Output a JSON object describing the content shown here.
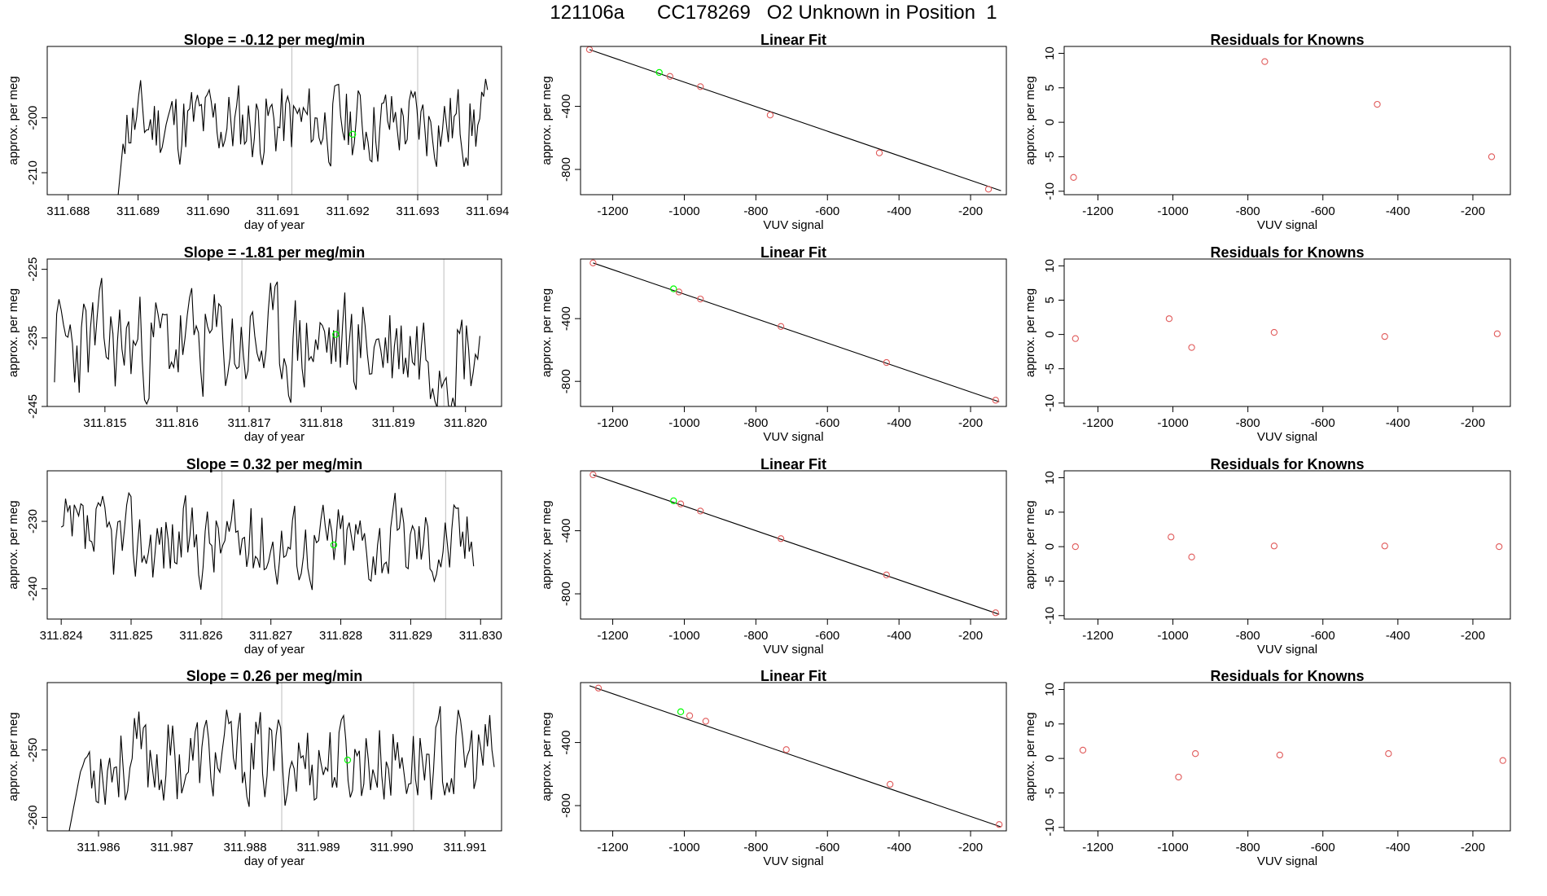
{
  "figure": {
    "title": "121106a      CC178269   O2 Unknown in Position  1"
  },
  "colors": {
    "line": "#000000",
    "vline": "#bebebe",
    "highlight": "#00ff00",
    "point": "#e05a5a",
    "axis": "#000000"
  },
  "chart_data": [
    {
      "id": "ts-1",
      "type": "line",
      "title": "Slope =  -0.12  per meg/min",
      "xlabel": "day of year",
      "ylabel": "approx. per meg",
      "xlim": [
        311.6877,
        311.6942
      ],
      "ylim": [
        -214,
        -187
      ],
      "xticks": [
        311.688,
        311.689,
        311.69,
        311.691,
        311.692,
        311.693,
        311.694
      ],
      "xticklabels": [
        "311.688",
        "311.689",
        "311.690",
        "311.691",
        "311.692",
        "311.693",
        "311.694"
      ],
      "yticks": [
        -210,
        -200
      ],
      "yticklabels": [
        "-210",
        "-200"
      ],
      "x_start": 311.6887,
      "x_end": 311.694,
      "base": -201,
      "amp": 4.2,
      "seed": 11,
      "warm_len": 4,
      "warm_from": -216,
      "vlines": [
        311.6912,
        311.693
      ],
      "highlight": {
        "x": 311.69207,
        "y": -203.0
      }
    },
    {
      "id": "fit-1",
      "type": "scatter",
      "title": "Linear Fit",
      "xlabel": "VUV signal",
      "ylabel": "approx. per meg",
      "xlim": [
        -1290,
        -100
      ],
      "ylim": [
        -960,
        -20
      ],
      "xticks": [
        -1200,
        -1000,
        -800,
        -600,
        -400,
        -200
      ],
      "xticklabels": [
        "-1200",
        "-1000",
        "-800",
        "-600",
        "-400",
        "-200"
      ],
      "yticks": [
        -400,
        -800
      ],
      "yticklabels": [
        "-400",
        "-800"
      ],
      "line": {
        "x": [
          -1265,
          -115
        ],
        "y": [
          -40,
          -935
        ]
      },
      "points_x": [
        -1265,
        -1040,
        -955,
        -760,
        -455,
        -150
      ],
      "points_y": [
        -40,
        -210,
        -275,
        -455,
        -695,
        -925
      ],
      "highlight": {
        "x": -1070,
        "y": -185
      }
    },
    {
      "id": "res-1",
      "type": "scatter",
      "title": "Residuals for Knowns",
      "xlabel": "VUV signal",
      "ylabel": "approx. per meg",
      "xlim": [
        -1290,
        -100
      ],
      "ylim": [
        -10.5,
        11
      ],
      "xticks": [
        -1200,
        -1000,
        -800,
        -600,
        -400,
        -200
      ],
      "xticklabels": [
        "-1200",
        "-1000",
        "-800",
        "-600",
        "-400",
        "-200"
      ],
      "yticks": [
        -10,
        -5,
        0,
        5,
        10
      ],
      "yticklabels": [
        "-10",
        "-5",
        "0",
        "5",
        "10"
      ],
      "points_x": [
        -1265,
        -755,
        -455,
        -150
      ],
      "points_y": [
        -8.0,
        8.8,
        2.6,
        -5.0
      ]
    },
    {
      "id": "ts-2",
      "type": "line",
      "title": "Slope =  -1.81  per meg/min",
      "xlabel": "day of year",
      "ylabel": "approx. per meg",
      "xlim": [
        311.8142,
        311.8205
      ],
      "ylim": [
        -245,
        -223.5
      ],
      "xticks": [
        311.815,
        311.816,
        311.817,
        311.818,
        311.819,
        311.82
      ],
      "xticklabels": [
        "311.815",
        "311.816",
        "311.817",
        "311.818",
        "311.819",
        "311.820"
      ],
      "yticks": [
        -245,
        -235,
        -225
      ],
      "yticklabels": [
        "-245",
        "-235",
        "-225"
      ],
      "x_start": 311.8143,
      "x_end": 311.8202,
      "base": -236,
      "amp": 4.6,
      "seed": 23,
      "warm_len": 0,
      "warm_from": -236,
      "vlines": [
        311.8169,
        311.8197
      ],
      "highlight": {
        "x": 311.8182,
        "y": -234.5
      }
    },
    {
      "id": "fit-2",
      "type": "scatter",
      "title": "Linear Fit",
      "xlabel": "VUV signal",
      "ylabel": "approx. per meg",
      "xlim": [
        -1290,
        -100
      ],
      "ylim": [
        -960,
        -20
      ],
      "xticks": [
        -1200,
        -1000,
        -800,
        -600,
        -400,
        -200
      ],
      "xticklabels": [
        "-1200",
        "-1000",
        "-800",
        "-600",
        "-400",
        "-200"
      ],
      "yticks": [
        -400,
        -800
      ],
      "yticklabels": [
        "-400",
        "-800"
      ],
      "line": {
        "x": [
          -1255,
          -120
        ],
        "y": [
          -45,
          -930
        ]
      },
      "points_x": [
        -1255,
        -1015,
        -955,
        -730,
        -435,
        -130
      ],
      "points_y": [
        -45,
        -230,
        -275,
        -450,
        -680,
        -920
      ],
      "highlight": {
        "x": -1030,
        "y": -210
      }
    },
    {
      "id": "res-2",
      "type": "scatter",
      "title": "Residuals for Knowns",
      "xlabel": "VUV signal",
      "ylabel": "approx. per meg",
      "xlim": [
        -1290,
        -100
      ],
      "ylim": [
        -10.5,
        11
      ],
      "xticks": [
        -1200,
        -1000,
        -800,
        -600,
        -400,
        -200
      ],
      "xticklabels": [
        "-1200",
        "-1000",
        "-800",
        "-600",
        "-400",
        "-200"
      ],
      "yticks": [
        -10,
        -5,
        0,
        5,
        10
      ],
      "yticklabels": [
        "-10",
        "-5",
        "0",
        "5",
        "10"
      ],
      "points_x": [
        -1260,
        -1010,
        -950,
        -730,
        -435,
        -135
      ],
      "points_y": [
        -0.6,
        2.3,
        -1.9,
        0.3,
        -0.3,
        0.1
      ]
    },
    {
      "id": "ts-3",
      "type": "line",
      "title": "Slope =  0.32  per meg/min",
      "xlabel": "day of year",
      "ylabel": "approx. per meg",
      "xlim": [
        311.8238,
        311.8303
      ],
      "ylim": [
        -244.5,
        -222.5
      ],
      "xticks": [
        311.824,
        311.825,
        311.826,
        311.827,
        311.828,
        311.829,
        311.83
      ],
      "xticklabels": [
        "311.824",
        "311.825",
        "311.826",
        "311.827",
        "311.828",
        "311.829",
        "311.830"
      ],
      "yticks": [
        -240,
        -230
      ],
      "yticklabels": [
        "-240",
        "-230"
      ],
      "x_start": 311.824,
      "x_end": 311.8299,
      "base": -233,
      "amp": 3.6,
      "seed": 37,
      "warm_len": 0,
      "warm_from": -233,
      "vlines": [
        311.8263,
        311.8295
      ],
      "highlight": {
        "x": 311.8279,
        "y": -233.5
      }
    },
    {
      "id": "fit-3",
      "type": "scatter",
      "title": "Linear Fit",
      "xlabel": "VUV signal",
      "ylabel": "approx. per meg",
      "xlim": [
        -1290,
        -100
      ],
      "ylim": [
        -960,
        -20
      ],
      "xticks": [
        -1200,
        -1000,
        -800,
        -600,
        -400,
        -200
      ],
      "xticklabels": [
        "-1200",
        "-1000",
        "-800",
        "-600",
        "-400",
        "-200"
      ],
      "yticks": [
        -400,
        -800
      ],
      "yticklabels": [
        "-400",
        "-800"
      ],
      "line": {
        "x": [
          -1255,
          -120
        ],
        "y": [
          -45,
          -930
        ]
      },
      "points_x": [
        -1255,
        -1010,
        -955,
        -730,
        -435,
        -130
      ],
      "points_y": [
        -45,
        -230,
        -275,
        -450,
        -680,
        -920
      ],
      "highlight": {
        "x": -1030,
        "y": -210
      }
    },
    {
      "id": "res-3",
      "type": "scatter",
      "title": "Residuals for Knowns",
      "xlabel": "VUV signal",
      "ylabel": "approx. per meg",
      "xlim": [
        -1290,
        -100
      ],
      "ylim": [
        -10.5,
        11
      ],
      "xticks": [
        -1200,
        -1000,
        -800,
        -600,
        -400,
        -200
      ],
      "xticklabels": [
        "-1200",
        "-1000",
        "-800",
        "-600",
        "-400",
        "-200"
      ],
      "yticks": [
        -10,
        -5,
        0,
        5,
        10
      ],
      "yticklabels": [
        "-10",
        "-5",
        "0",
        "5",
        "10"
      ],
      "points_x": [
        -1260,
        -1005,
        -950,
        -730,
        -435,
        -130
      ],
      "points_y": [
        0.0,
        1.4,
        -1.5,
        0.1,
        0.1,
        0.0
      ]
    },
    {
      "id": "ts-4",
      "type": "line",
      "title": "Slope =  0.26  per meg/min",
      "xlabel": "day of year",
      "ylabel": "approx. per meg",
      "xlim": [
        311.9853,
        311.9915
      ],
      "ylim": [
        -262,
        -240
      ],
      "xticks": [
        311.986,
        311.987,
        311.988,
        311.989,
        311.99,
        311.991
      ],
      "xticklabels": [
        "311.986",
        "311.987",
        "311.988",
        "311.989",
        "311.990",
        "311.991"
      ],
      "yticks": [
        -260,
        -250
      ],
      "yticklabels": [
        "-260",
        "-250"
      ],
      "x_start": 311.9856,
      "x_end": 311.9914,
      "base": -251.5,
      "amp": 3.9,
      "seed": 53,
      "warm_len": 6,
      "warm_from": -262,
      "vlines": [
        311.9885,
        311.9903
      ],
      "highlight": {
        "x": 311.9894,
        "y": -251.5
      }
    },
    {
      "id": "fit-4",
      "type": "scatter",
      "title": "Linear Fit",
      "xlabel": "VUV signal",
      "ylabel": "approx. per meg",
      "xlim": [
        -1290,
        -100
      ],
      "ylim": [
        -960,
        -20
      ],
      "xticks": [
        -1200,
        -1000,
        -800,
        -600,
        -400,
        -200
      ],
      "xticklabels": [
        "-1200",
        "-1000",
        "-800",
        "-600",
        "-400",
        "-200"
      ],
      "yticks": [
        -400,
        -800
      ],
      "yticklabels": [
        "-400",
        "-800"
      ],
      "line": {
        "x": [
          -1265,
          -115
        ],
        "y": [
          -40,
          -935
        ]
      },
      "points_x": [
        -1240,
        -985,
        -940,
        -715,
        -425,
        -120
      ],
      "points_y": [
        -55,
        -230,
        -265,
        -445,
        -665,
        -920
      ],
      "highlight": {
        "x": -1010,
        "y": -205
      }
    },
    {
      "id": "res-4",
      "type": "scatter",
      "title": "Residuals for Knowns",
      "xlabel": "VUV signal",
      "ylabel": "approx. per meg",
      "xlim": [
        -1290,
        -100
      ],
      "ylim": [
        -10.5,
        11
      ],
      "xticks": [
        -1200,
        -1000,
        -800,
        -600,
        -400,
        -200
      ],
      "xticklabels": [
        "-1200",
        "-1000",
        "-800",
        "-600",
        "-400",
        "-200"
      ],
      "yticks": [
        -10,
        -5,
        0,
        5,
        10
      ],
      "yticklabels": [
        "-10",
        "-5",
        "0",
        "5",
        "10"
      ],
      "points_x": [
        -1240,
        -985,
        -940,
        -715,
        -425,
        -120
      ],
      "points_y": [
        1.2,
        -2.7,
        0.7,
        0.5,
        0.7,
        -0.3
      ]
    }
  ]
}
